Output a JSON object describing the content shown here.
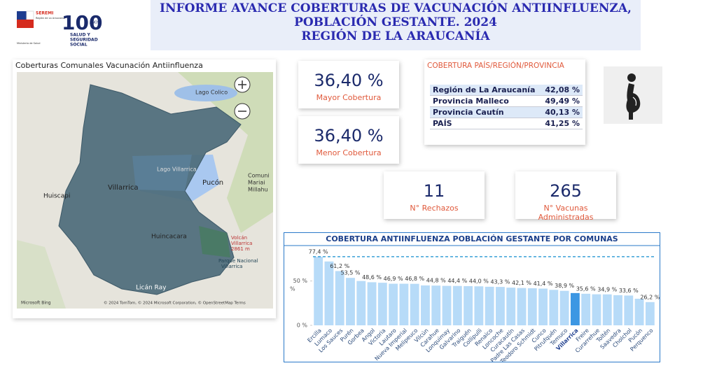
{
  "header": {
    "title_lines": [
      "INFORME AVANCE COBERTURAS DE VACUNACIÓN ANTIINFLUENZA,",
      "POBLACIÓN GESTANTE. 2024",
      "REGIÓN DE LA ARAUCANÍA"
    ],
    "logo_seremi": "SEREMI",
    "logo_seremi_sub": "Región de La Araucanía",
    "logo_ministry": "Ministerio de Salud",
    "logo_100": "100",
    "logo_100_sub": "AÑOS",
    "logo_100_lines": [
      "SALUD Y",
      "SEGURIDAD",
      "SOCIAL"
    ]
  },
  "map": {
    "title": "Coberturas Comunales Vacunación Antiinfluenza",
    "labels": [
      "Lago Colico",
      "Lago Villarrica",
      "Villarrica",
      "Pucón",
      "Huiscapi",
      "Huincacara",
      "Licán Ray",
      "Volcán",
      "Villarrica",
      "2861 m",
      "Parque Nacional",
      "Villarrica",
      "Comuni",
      "Mariai",
      "Millahu"
    ],
    "bing": "Microsoft Bing",
    "attribution": "© 2024 TomTom, © 2024 Microsoft Corporation, © OpenStreetMap  Terms"
  },
  "cards": [
    {
      "value": "36,40 %",
      "label": "Mayor Cobertura"
    },
    {
      "value": "36,40 %",
      "label": "Menor Cobertura"
    },
    {
      "value": "11",
      "label": "N° Rechazos"
    },
    {
      "value": "265",
      "label": "N° Vacunas Administradas"
    }
  ],
  "table": {
    "title": "COBERTURA PAÍS/REGIÓN/PROVINCIA",
    "rows": [
      [
        "Región de La Araucanía",
        "42,08 %"
      ],
      [
        "Provincia Malleco",
        "49,49 %"
      ],
      [
        "Provincia Cautín",
        "40,13 %"
      ],
      [
        "PAÍS",
        "41,25 %"
      ]
    ]
  },
  "chart_data": {
    "type": "bar",
    "title": "COBERTURA ANTIINFLUENZA POBLACIÓN GESTANTE POR COMUNAS",
    "y_label": "%",
    "categories": [
      "Ercilla",
      "Lumaco",
      "Los Sauces",
      "Purén",
      "Gorbea",
      "Angol",
      "Victoria",
      "Lautaro",
      "Nueva Imperial",
      "Melipeuco",
      "Vilcún",
      "Carahue",
      "Lonquimay",
      "Galvarino",
      "Traiguén",
      "Collipulli",
      "Renaico",
      "Loncoche",
      "Curacautín",
      "Padre Las Casas",
      "Teodoro Schmidt",
      "Cunco",
      "Pitrufquén",
      "Temuco",
      "Villarrica",
      "Freire",
      "Curarrehue",
      "Toltén",
      "Saavedra",
      "Cholchol",
      "Pucón",
      "Perquenco"
    ],
    "values": [
      77.4,
      72,
      61.2,
      53.5,
      50,
      48.6,
      48,
      46.9,
      46.9,
      46.8,
      45,
      44.8,
      44.5,
      44.4,
      44.2,
      44.0,
      43.5,
      43.3,
      42.5,
      42.1,
      41.8,
      41.4,
      40,
      38.9,
      36.4,
      35.6,
      35,
      34.9,
      34,
      33.6,
      30,
      26.2
    ],
    "value_labels": [
      "77,4 %",
      null,
      "61,2 %",
      "53,5 %",
      null,
      "48,6 %",
      null,
      "46,9 %",
      null,
      "46,8 %",
      null,
      "44,8 %",
      null,
      "44,4 %",
      null,
      "44,0 %",
      null,
      "43,3 %",
      null,
      "42,1 %",
      null,
      "41,4 %",
      null,
      "38,9 %",
      null,
      "35,6 %",
      null,
      "34,9 %",
      null,
      "33,6 %",
      null,
      "26,2 %"
    ],
    "color": "#b7dbf8",
    "highlight": {
      "index": 24,
      "color": "#3c97e3",
      "label_color": "#1f3f8f"
    },
    "reference_line": 77.4,
    "ylim": [
      0,
      86
    ],
    "yticks": [
      {
        "value": 0,
        "label": "0 %"
      },
      {
        "value": 50,
        "label": "50 %"
      }
    ]
  }
}
